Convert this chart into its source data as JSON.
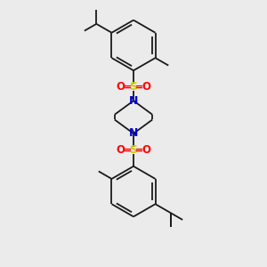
{
  "bg_color": "#ebebeb",
  "bond_color": "#1a1a1a",
  "bond_width": 1.3,
  "S_color": "#cccc00",
  "O_color": "#ff0000",
  "N_color": "#0000cc",
  "figsize": [
    3.0,
    3.0
  ],
  "dpi": 100,
  "xlim": [
    -3.5,
    3.5
  ],
  "ylim": [
    -5.2,
    5.2
  ]
}
